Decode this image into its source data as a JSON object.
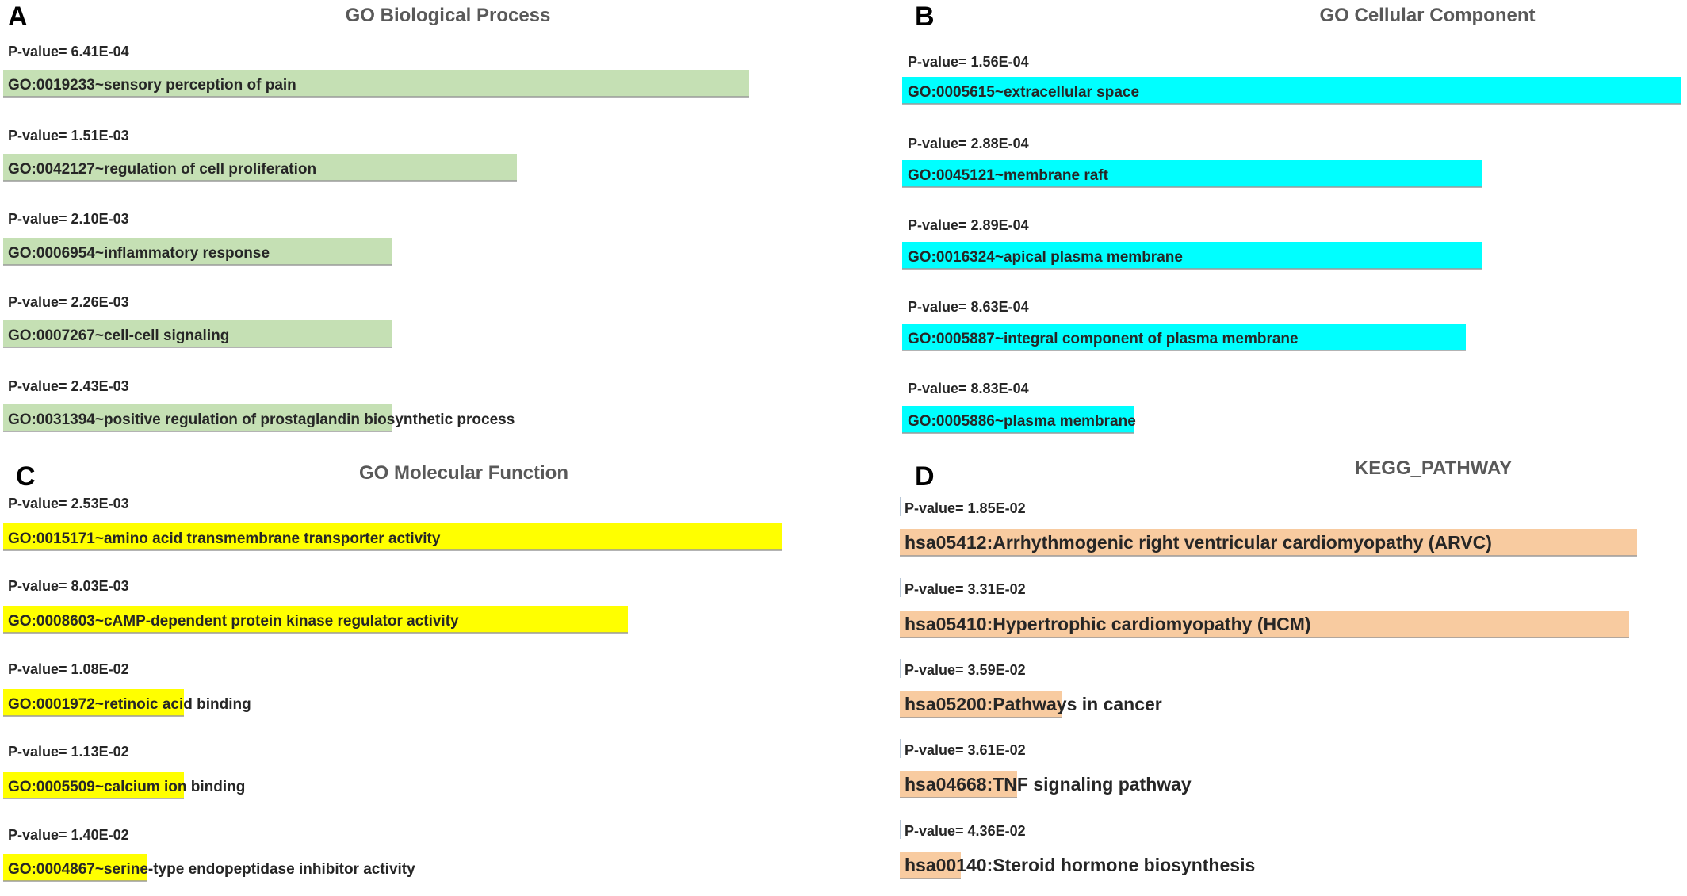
{
  "chart_data": [
    {
      "panel": "A",
      "type": "bar",
      "title": "GO Biological Process",
      "color": "#c5e0b4",
      "categories": [
        "GO:0019233~sensory perception of pain",
        "GO:0042127~regulation of cell proliferation",
        "GO:0006954~inflammatory response",
        "GO:0007267~cell-cell signaling",
        "GO:0031394~positive regulation of prostaglandin biosynthetic process"
      ],
      "pvalues": [
        "P-value= 6.41E-04",
        "P-value= 1.51E-03",
        "P-value= 2.10E-03",
        "P-value= 2.26E-03",
        "P-value= 2.43E-03"
      ],
      "values": [
        0.45,
        0.31,
        0.235,
        0.235,
        0.235
      ]
    },
    {
      "panel": "B",
      "type": "bar",
      "title": "GO Cellular Component",
      "color": "#00ffff",
      "categories": [
        "GO:0005615~extracellular space",
        "GO:0045121~membrane raft",
        "GO:0016324~apical plasma membrane",
        "GO:0005887~integral component of plasma membrane",
        "GO:0005886~plasma membrane"
      ],
      "pvalues": [
        "P-value= 1.56E-04",
        "P-value= 2.88E-04",
        "P-value= 2.89E-04",
        "P-value= 8.63E-04",
        "P-value= 8.83E-04"
      ],
      "values": [
        0.47,
        0.35,
        0.35,
        0.34,
        0.14
      ]
    },
    {
      "panel": "C",
      "type": "bar",
      "title": "GO Molecular Function",
      "color": "#ffff00",
      "categories": [
        "GO:0015171~amino acid transmembrane transporter activity",
        "GO:0008603~cAMP-dependent protein kinase regulator activity",
        "GO:0001972~retinoic acid binding",
        "GO:0005509~calcium ion binding",
        "GO:0004867~serine-type endopeptidase inhibitor activity"
      ],
      "pvalues": [
        "P-value= 2.53E-03",
        "P-value= 8.03E-03",
        "P-value= 1.08E-02",
        "P-value= 1.13E-02",
        "P-value= 1.40E-02"
      ],
      "values": [
        0.47,
        0.377,
        0.109,
        0.109,
        0.087
      ]
    },
    {
      "panel": "D",
      "type": "bar",
      "title": "KEGG_PATHWAY",
      "color": "#f8cba0",
      "categories": [
        "hsa05412:Arrhythmogenic right ventricular cardiomyopathy (ARVC)",
        "hsa05410:Hypertrophic cardiomyopathy (HCM)",
        "hsa05200:Pathways in cancer",
        "hsa04668:TNF signaling pathway",
        "hsa00140:Steroid hormone biosynthesis"
      ],
      "pvalues": [
        "P-value= 1.85E-02",
        "P-value= 3.31E-02",
        "P-value= 3.59E-02",
        "P-value= 3.61E-02",
        "P-value= 4.36E-02"
      ],
      "values": [
        0.445,
        0.44,
        0.098,
        0.071,
        0.037
      ]
    }
  ]
}
